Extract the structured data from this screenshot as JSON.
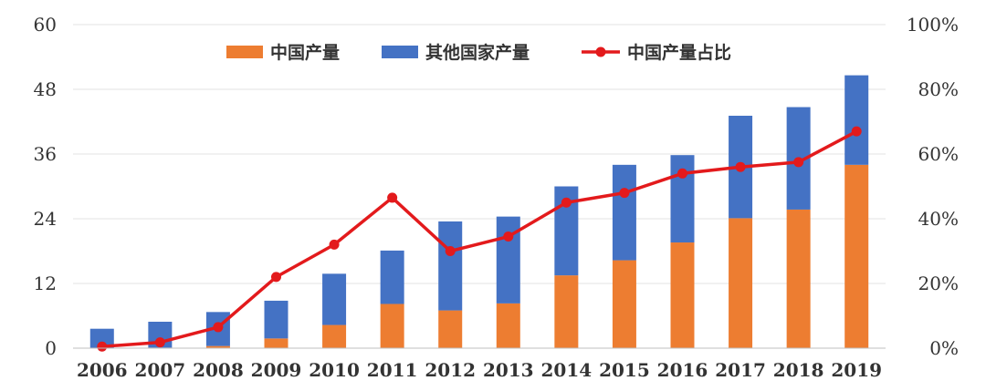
{
  "chart_data": {
    "type": "bar",
    "stacked": true,
    "categories": [
      "2006",
      "2007",
      "2008",
      "2009",
      "2010",
      "2011",
      "2012",
      "2013",
      "2014",
      "2015",
      "2016",
      "2017",
      "2018",
      "2019"
    ],
    "series": [
      {
        "name": "中国产量",
        "kind": "bar",
        "axis": "left",
        "color": "#ED7D31",
        "values": [
          0,
          0.1,
          0.4,
          1.8,
          4.3,
          8.2,
          7.0,
          8.3,
          13.5,
          16.3,
          19.6,
          24.1,
          25.7,
          34.0
        ]
      },
      {
        "name": "其他国家产量",
        "kind": "bar",
        "axis": "left",
        "color": "#4472C4",
        "values": [
          3.6,
          4.8,
          6.3,
          7.0,
          9.5,
          9.9,
          16.5,
          16.1,
          16.5,
          17.7,
          16.2,
          19.0,
          19.0,
          16.6
        ]
      },
      {
        "name": "中国产量占比",
        "kind": "line",
        "axis": "right",
        "color": "#E31A1C",
        "values": [
          0.5,
          1.8,
          6.5,
          22,
          32,
          46.5,
          30,
          34.5,
          45,
          48,
          54,
          56,
          57.5,
          67
        ]
      }
    ],
    "y_left": {
      "ylim": [
        0,
        60
      ],
      "ticks": [
        "0",
        "12",
        "24",
        "36",
        "48",
        "60"
      ]
    },
    "y_right": {
      "ylim": [
        0,
        100
      ],
      "ticks": [
        "0%",
        "20%",
        "40%",
        "60%",
        "80%",
        "100%"
      ]
    },
    "grid": true,
    "legend_position": "top"
  }
}
